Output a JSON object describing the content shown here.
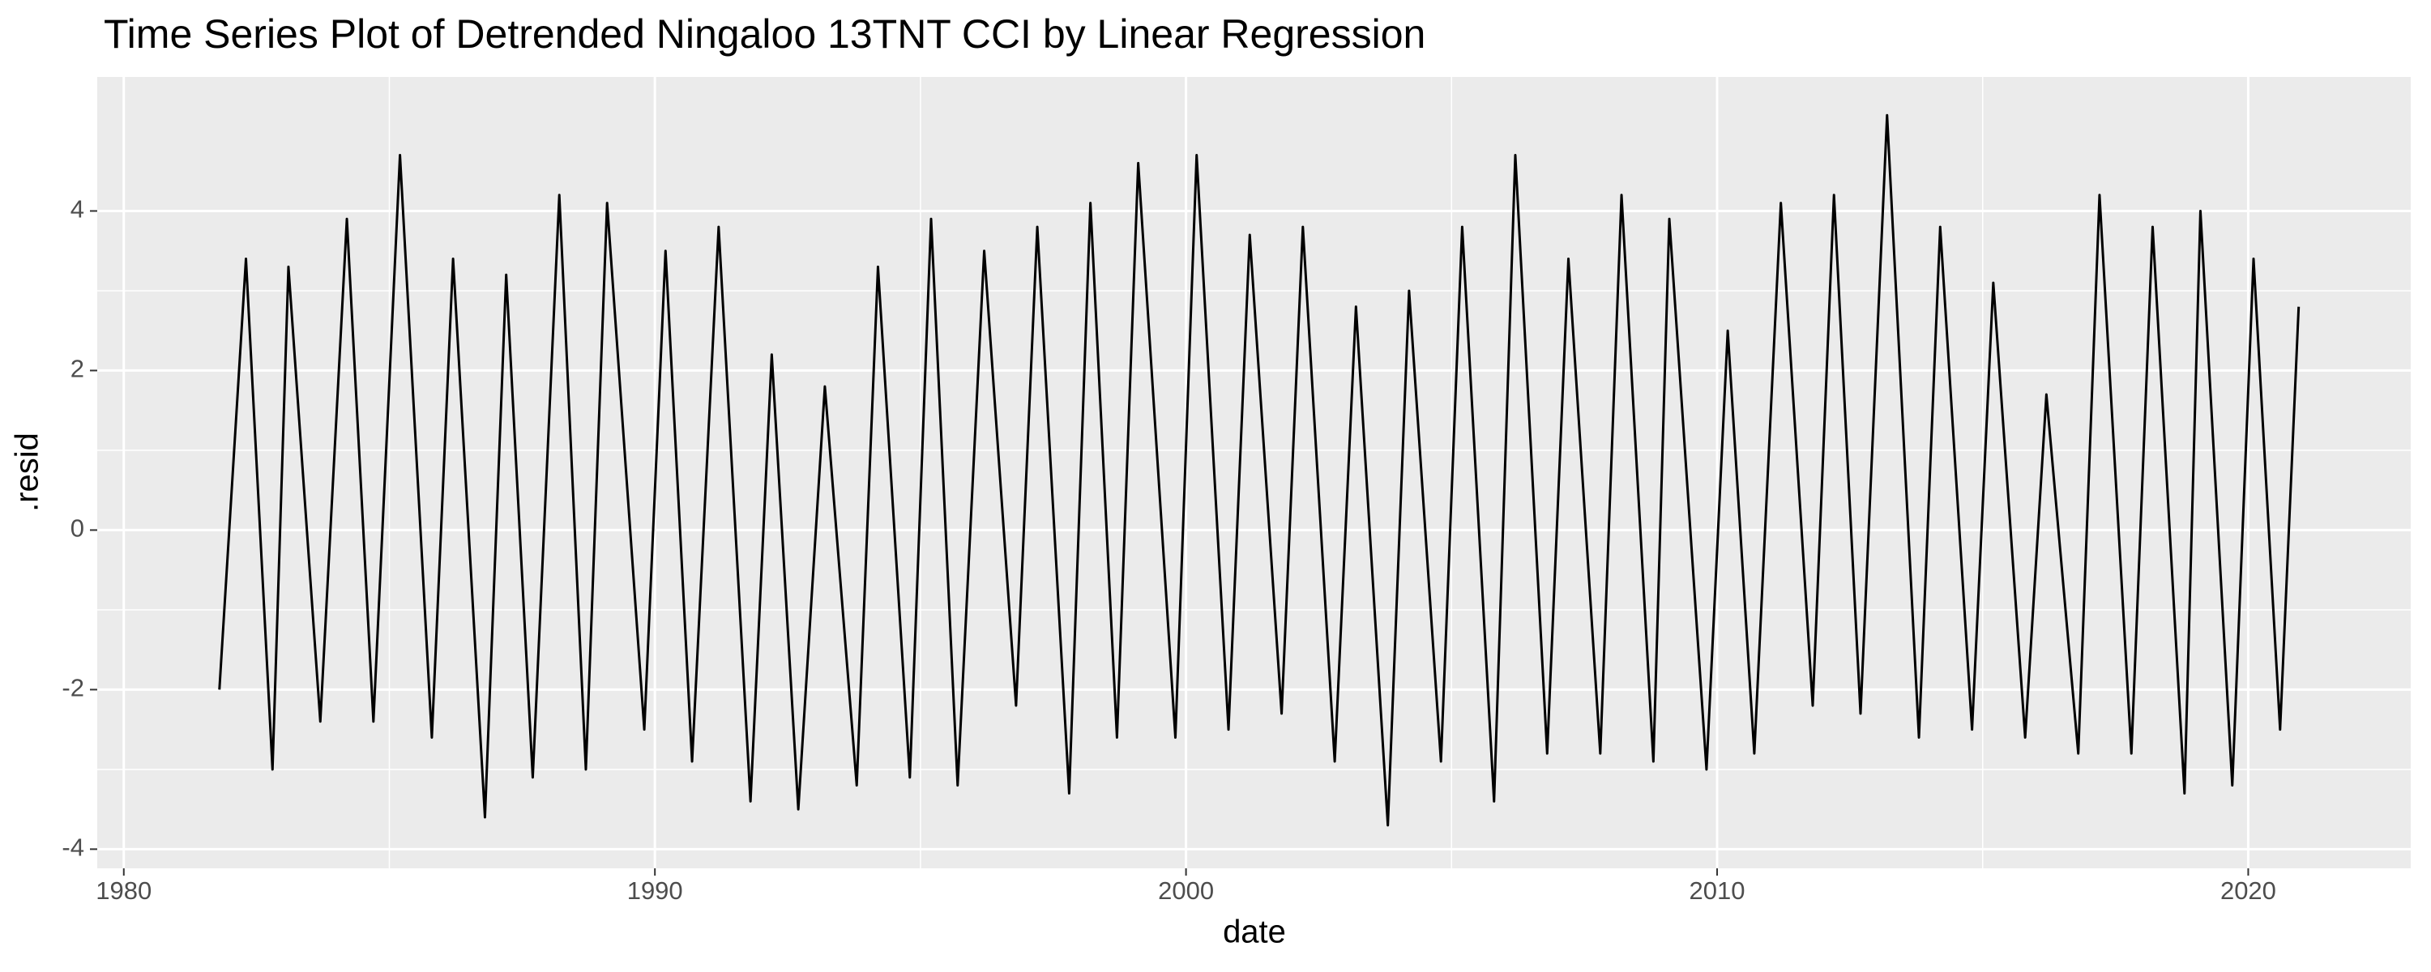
{
  "chart_data": {
    "type": "line",
    "title": "Time Series Plot of Detrended Ningaloo 13TNT CCI by Linear Regression",
    "x_label": "date",
    "y_label": ".resid",
    "x": [
      1981.8,
      1982.3,
      1982.8,
      1983.1,
      1983.7,
      1984.2,
      1984.7,
      1985.2,
      1985.8,
      1986.2,
      1986.8,
      1987.2,
      1987.7,
      1988.2,
      1988.7,
      1989.1,
      1989.8,
      1990.2,
      1990.7,
      1991.2,
      1991.8,
      1992.2,
      1992.7,
      1993.2,
      1993.8,
      1994.2,
      1994.8,
      1995.2,
      1995.7,
      1996.2,
      1996.8,
      1997.2,
      1997.8,
      1998.2,
      1998.7,
      1999.1,
      1999.8,
      2000.2,
      2000.8,
      2001.2,
      2001.8,
      2002.2,
      2002.8,
      2003.2,
      2003.8,
      2004.2,
      2004.8,
      2005.2,
      2005.8,
      2006.2,
      2006.8,
      2007.2,
      2007.8,
      2008.2,
      2008.8,
      2009.1,
      2009.8,
      2010.2,
      2010.7,
      2011.2,
      2011.8,
      2012.2,
      2012.7,
      2013.2,
      2013.8,
      2014.2,
      2014.8,
      2015.2,
      2015.8,
      2016.2,
      2016.8,
      2017.2,
      2017.8,
      2018.2,
      2018.8,
      2019.1,
      2019.7,
      2020.1,
      2020.6,
      2020.95
    ],
    "series": [
      {
        "name": ".resid",
        "color": "#000000",
        "values": [
          -2.0,
          3.4,
          -3.0,
          3.3,
          -2.4,
          3.9,
          -2.4,
          4.7,
          -2.6,
          3.4,
          -3.6,
          3.2,
          -3.1,
          4.2,
          -3.0,
          4.1,
          -2.5,
          3.5,
          -2.9,
          3.8,
          -3.4,
          2.2,
          -3.5,
          1.8,
          -3.2,
          3.3,
          -3.1,
          3.9,
          -3.2,
          3.5,
          -2.2,
          3.8,
          -3.3,
          4.1,
          -2.6,
          4.6,
          -2.6,
          4.7,
          -2.5,
          3.7,
          -2.3,
          3.8,
          -2.9,
          2.8,
          -3.7,
          3.0,
          -2.9,
          3.8,
          -3.4,
          4.7,
          -2.8,
          3.4,
          -2.8,
          4.2,
          -2.9,
          3.9,
          -3.0,
          2.5,
          -2.8,
          4.1,
          -2.2,
          4.2,
          -2.3,
          5.2,
          -2.6,
          3.8,
          -2.5,
          3.1,
          -2.6,
          1.7,
          -2.8,
          4.2,
          -2.8,
          3.8,
          -3.3,
          4.0,
          -3.2,
          3.4,
          -2.5,
          2.8
        ]
      }
    ],
    "xlim": [
      1979.5,
      2023.06
    ],
    "ylim": [
      -4.24,
      5.68
    ],
    "xticks": [
      1980,
      1990,
      2000,
      2010,
      2020
    ],
    "yticks": [
      -4,
      -2,
      0,
      2,
      4
    ],
    "grid": true
  }
}
